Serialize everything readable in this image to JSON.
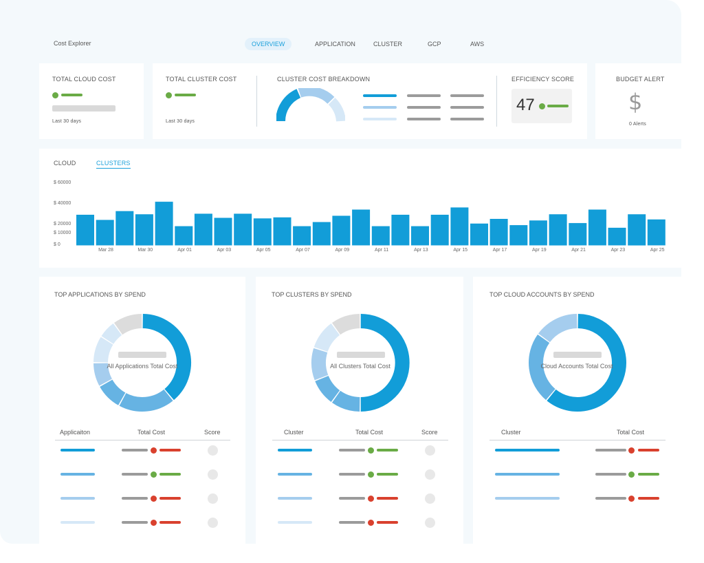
{
  "app": {
    "title": "Cost Explorer"
  },
  "nav": {
    "tabs": [
      {
        "label": "OVERVIEW",
        "active": true
      },
      {
        "label": "APPLICATION"
      },
      {
        "label": "CLUSTER"
      },
      {
        "label": "GCP"
      },
      {
        "label": "AWS"
      }
    ]
  },
  "colors": {
    "blue": "#129dd8",
    "blue_mid": "#66b3e3",
    "blue_light": "#a5cdee",
    "blue_pale": "#d6e8f7",
    "green": "#6aab46",
    "red": "#d9412e",
    "gray": "#9b9b9b"
  },
  "summary": {
    "total_cloud_cost": {
      "label": "TOTAL CLOUD COST",
      "footnote": "Last 30 days"
    },
    "total_cluster_cost": {
      "label": "TOTAL CLUSTER COST",
      "footnote": "Last 30 days"
    },
    "cluster_breakdown": {
      "label": "CLUSTER COST BREAKDOWN"
    },
    "efficiency": {
      "label": "EFFICIENCY SCORE",
      "value": "47"
    },
    "budget": {
      "label": "BUDGET ALERT",
      "icon": "dollar-icon",
      "symbol": "$",
      "footnote": "0 Alerts"
    }
  },
  "chart_tabs": [
    {
      "label": "CLOUD"
    },
    {
      "label": "CLUSTERS",
      "active": true
    }
  ],
  "chart_data": {
    "type": "bar",
    "title": "",
    "xlabel": "",
    "ylabel": "",
    "yticks": [
      "$ 60000",
      "$ 40000",
      "$ 20000",
      "$ 10000",
      "$ 0"
    ],
    "ylim": [
      0,
      60000
    ],
    "x_tick_labels": [
      "Mar 28",
      "Mar 30",
      "Apr 01",
      "Apr 03",
      "Apr 05",
      "Apr 07",
      "Apr 09",
      "Apr 11",
      "Apr 13",
      "Apr 15",
      "Apr 17",
      "Apr 19",
      "Apr 21",
      "Apr 23",
      "Apr 25"
    ],
    "values": [
      29500,
      24500,
      33000,
      30000,
      42000,
      18500,
      30500,
      26500,
      30500,
      26000,
      27000,
      18500,
      22500,
      28500,
      34500,
      18500,
      29500,
      18500,
      29500,
      36500,
      21000,
      25500,
      19500,
      24000,
      30000,
      21500,
      34500,
      17000,
      30000,
      25000
    ]
  },
  "panels": [
    {
      "title": "TOP APPLICATIONS BY SPEND",
      "center_text": "All Applications Total Cost",
      "headers": [
        "Applicaiton",
        "Total Cost",
        "Score"
      ],
      "donut": [
        0.39,
        0.19,
        0.09,
        0.08,
        0.09,
        0.06,
        0.1
      ],
      "row_status": [
        "red",
        "green",
        "red",
        "red"
      ]
    },
    {
      "title": "TOP CLUSTERS BY SPEND",
      "center_text": "All Clusters Total Cost",
      "headers": [
        "Cluster",
        "Total Cost",
        "Score"
      ],
      "donut": [
        0.5,
        0.1,
        0.09,
        0.11,
        0.1,
        0.1
      ],
      "row_status": [
        "green",
        "green",
        "red",
        "red"
      ]
    },
    {
      "title": "TOP CLOUD ACCOUNTS BY SPEND",
      "center_text": "Cloud Accounts Total Cost",
      "headers": [
        "Cluster",
        "Total Cost"
      ],
      "donut": [
        0.61,
        0.24,
        0.15
      ],
      "row_status": [
        "red",
        "green",
        "red"
      ]
    }
  ]
}
